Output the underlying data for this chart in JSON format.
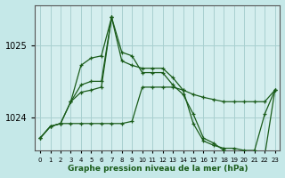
{
  "xlabel_label": "Graphe pression niveau de la mer (hPa)",
  "background_color": "#c5e8e8",
  "plot_bg_color": "#d4eeee",
  "grid_color": "#a8d0d0",
  "line_color": "#1a5c1a",
  "x_ticks": [
    0,
    1,
    2,
    3,
    4,
    5,
    6,
    7,
    8,
    9,
    10,
    11,
    12,
    13,
    14,
    15,
    16,
    17,
    18,
    19,
    20,
    21,
    22,
    23
  ],
  "ylim": [
    1023.55,
    1025.55
  ],
  "yticks": [
    1024,
    1025
  ],
  "series1": [
    1023.72,
    1023.88,
    1023.92,
    1023.92,
    1023.92,
    1023.92,
    1023.92,
    1023.92,
    1023.92,
    1023.95,
    1024.42,
    1024.42,
    1024.42,
    1024.42,
    1024.38,
    1024.32,
    1024.28,
    1024.25,
    1024.22,
    1024.22,
    1024.22,
    1024.22,
    1024.22,
    1024.38
  ],
  "series2": [
    1023.72,
    1023.88,
    1023.92,
    1024.22,
    1024.35,
    1024.38,
    1024.42,
    1025.38,
    1024.78,
    1024.72,
    1024.68,
    1024.68,
    1024.68,
    1024.55,
    1024.38,
    1023.92,
    1023.68,
    1023.62,
    1023.58,
    1023.58,
    1023.55,
    1023.55,
    1024.05,
    1024.38
  ],
  "series3": [
    1023.72,
    1023.88,
    1023.92,
    1024.22,
    1024.45,
    1024.5,
    1024.5,
    1025.38,
    1024.9,
    1024.85,
    1024.62,
    1024.62,
    1024.62,
    1024.45,
    1024.32,
    1024.05,
    1023.72,
    1023.65,
    1023.55,
    1023.52,
    1023.52,
    1023.48,
    1023.48,
    1024.38
  ],
  "series4_x": [
    3,
    4,
    5,
    6,
    7
  ],
  "series4_y": [
    1024.22,
    1024.72,
    1024.82,
    1024.85,
    1025.38
  ]
}
